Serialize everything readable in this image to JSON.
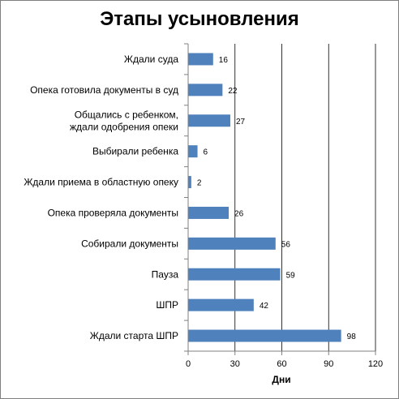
{
  "chart_data": {
    "type": "bar",
    "orientation": "horizontal",
    "title": "Этапы усыновления",
    "xlabel": "Дни",
    "ylabel": "",
    "xlim": [
      0,
      120
    ],
    "x_ticks": [
      0,
      30,
      60,
      90,
      120
    ],
    "grid": "vertical",
    "legend": "none",
    "bar_color": "#4f81bd",
    "categories": [
      [
        "Ждали суда"
      ],
      [
        "Опека готовила документы в суд"
      ],
      [
        "Общались с ребенком,",
        "ждали одобрения опеки"
      ],
      [
        "Выбирали ребенка"
      ],
      [
        "Ждали приема в областную опеку"
      ],
      [
        "Опека проверяла документы"
      ],
      [
        "Собирали документы"
      ],
      [
        "Пауза"
      ],
      [
        "ШПР"
      ],
      [
        "Ждали старта ШПР"
      ]
    ],
    "values": [
      16,
      22,
      27,
      6,
      2,
      26,
      56,
      59,
      42,
      98
    ]
  }
}
